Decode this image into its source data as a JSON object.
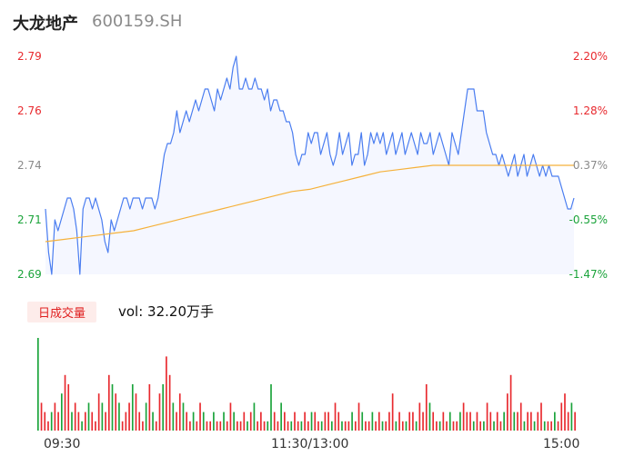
{
  "header": {
    "name": "大龙地产",
    "code": "600159.SH"
  },
  "colors": {
    "up": "#e8292e",
    "down": "#1aa33a",
    "flat": "#8a8a8a",
    "price_line": "#4a7df0",
    "avg_line": "#f5b13a",
    "fill": "#f5f7ff"
  },
  "volume": {
    "tag": "日成交量",
    "text": "vol: 32.20万手"
  },
  "chart_data": [
    {
      "type": "line",
      "title": "",
      "x_ticks": [
        "09:30",
        "11:30/13:00",
        "15:00"
      ],
      "ylim": [
        2.69,
        2.79
      ],
      "y_ticks_left": [
        "2.79",
        "2.76",
        "2.74",
        "2.71",
        "2.69"
      ],
      "y_ticks_right": [
        "2.20%",
        "1.28%",
        "0.37%",
        "-0.55%",
        "-1.47%"
      ],
      "prev_close": 2.74,
      "series": [
        {
          "role": "price",
          "values": [
            2.72,
            2.7,
            2.69,
            2.715,
            2.71,
            2.715,
            2.72,
            2.725,
            2.725,
            2.72,
            2.71,
            2.69,
            2.72,
            2.725,
            2.725,
            2.72,
            2.725,
            2.72,
            2.715,
            2.705,
            2.7,
            2.715,
            2.71,
            2.715,
            2.72,
            2.725,
            2.725,
            2.72,
            2.725,
            2.725,
            2.725,
            2.72,
            2.725,
            2.725,
            2.725,
            2.72,
            2.725,
            2.735,
            2.745,
            2.75,
            2.75,
            2.755,
            2.765,
            2.755,
            2.76,
            2.765,
            2.76,
            2.765,
            2.77,
            2.765,
            2.77,
            2.775,
            2.775,
            2.77,
            2.765,
            2.775,
            2.77,
            2.775,
            2.78,
            2.775,
            2.785,
            2.79,
            2.775,
            2.775,
            2.78,
            2.775,
            2.775,
            2.78,
            2.775,
            2.775,
            2.77,
            2.775,
            2.765,
            2.77,
            2.77,
            2.765,
            2.765,
            2.76,
            2.76,
            2.755,
            2.745,
            2.74,
            2.745,
            2.745,
            2.755,
            2.75,
            2.755,
            2.755,
            2.745,
            2.75,
            2.755,
            2.745,
            2.74,
            2.745,
            2.755,
            2.745,
            2.75,
            2.755,
            2.74,
            2.745,
            2.745,
            2.755,
            2.74,
            2.745,
            2.755,
            2.75,
            2.755,
            2.75,
            2.755,
            2.745,
            2.75,
            2.755,
            2.745,
            2.75,
            2.755,
            2.745,
            2.75,
            2.755,
            2.75,
            2.745,
            2.755,
            2.75,
            2.75,
            2.755,
            2.745,
            2.75,
            2.755,
            2.75,
            2.745,
            2.74,
            2.755,
            2.75,
            2.745,
            2.755,
            2.765,
            2.775,
            2.775,
            2.775,
            2.765,
            2.765,
            2.765,
            2.755,
            2.75,
            2.745,
            2.745,
            2.74,
            2.745,
            2.74,
            2.735,
            2.74,
            2.745,
            2.735,
            2.74,
            2.745,
            2.735,
            2.74,
            2.745,
            2.74,
            2.735,
            2.74,
            2.735,
            2.74,
            2.735,
            2.735,
            2.735,
            2.73,
            2.725,
            2.72,
            2.72,
            2.725
          ],
          "color_key": "price_line"
        },
        {
          "role": "average",
          "values": [
            2.705,
            2.706,
            2.707,
            2.708,
            2.709,
            2.71,
            2.712,
            2.714,
            2.716,
            2.718,
            2.72,
            2.722,
            2.724,
            2.726,
            2.728,
            2.729,
            2.731,
            2.733,
            2.735,
            2.737,
            2.738,
            2.739,
            2.74,
            2.74,
            2.74,
            2.74,
            2.74,
            2.74,
            2.74,
            2.74,
            2.74
          ],
          "color_key": "avg_line"
        }
      ]
    },
    {
      "type": "bar",
      "title": "",
      "unit": "万手",
      "values": [
        10,
        3,
        2,
        1,
        2,
        3,
        2,
        4,
        6,
        5,
        2,
        3,
        2,
        1,
        2,
        3,
        2,
        1,
        4,
        3,
        2,
        6,
        5,
        4,
        3,
        1,
        2,
        3,
        5,
        4,
        2,
        1,
        3,
        5,
        2,
        1,
        4,
        5,
        8,
        6,
        3,
        2,
        4,
        3,
        2,
        1,
        2,
        1,
        3,
        2,
        1,
        1,
        2,
        1,
        1,
        2,
        1,
        3,
        2,
        1,
        1,
        2,
        1,
        2,
        3,
        1,
        2,
        1,
        1,
        5,
        2,
        1,
        3,
        2,
        1,
        1,
        2,
        1,
        1,
        2,
        1,
        2,
        2,
        1,
        1,
        2,
        2,
        1,
        3,
        2,
        1,
        1,
        1,
        2,
        1,
        3,
        2,
        1,
        1,
        2,
        1,
        2,
        1,
        1,
        2,
        4,
        1,
        2,
        1,
        1,
        2,
        2,
        1,
        3,
        2,
        5,
        3,
        2,
        1,
        1,
        2,
        1,
        2,
        1,
        1,
        2,
        3,
        2,
        2,
        1,
        2,
        1,
        1,
        3,
        2,
        1,
        2,
        1,
        2,
        4,
        6,
        2,
        2,
        3,
        1,
        2,
        2,
        1,
        2,
        3,
        1,
        1,
        1,
        2,
        1,
        3,
        4,
        2,
        3,
        2
      ],
      "up_flags": [
        0,
        1,
        1,
        1,
        0,
        1,
        1,
        0,
        1,
        1,
        0,
        1,
        1,
        0,
        1,
        0,
        1,
        1,
        1,
        0,
        1,
        1,
        0,
        1,
        0,
        1,
        1,
        1,
        0,
        1,
        1,
        1,
        0,
        1,
        0,
        1,
        1,
        0,
        1,
        1,
        0,
        1,
        1,
        0,
        1,
        1,
        0,
        1,
        1,
        0,
        1,
        1,
        0,
        1,
        1,
        0,
        1,
        1,
        0,
        1,
        1,
        1,
        0,
        1,
        0,
        1,
        1,
        1,
        0,
        0,
        1,
        1,
        0,
        1,
        1,
        0,
        1,
        1,
        0,
        1,
        1,
        0,
        1,
        1,
        0,
        1,
        1,
        0,
        1,
        1,
        0,
        1,
        1,
        0,
        1,
        1,
        0,
        1,
        1,
        0,
        1,
        1,
        0,
        1,
        1,
        1,
        0,
        1,
        1,
        0,
        1,
        1,
        0,
        1,
        1,
        1,
        0,
        1,
        1,
        0,
        1,
        1,
        0,
        1,
        1,
        0,
        1,
        1,
        1,
        0,
        1,
        1,
        0,
        1,
        1,
        0,
        1,
        1,
        0,
        1,
        1,
        0,
        1,
        1,
        0,
        1,
        1,
        0,
        1,
        1,
        0,
        1,
        1,
        0,
        1,
        1,
        1,
        1,
        0,
        1
      ]
    }
  ]
}
